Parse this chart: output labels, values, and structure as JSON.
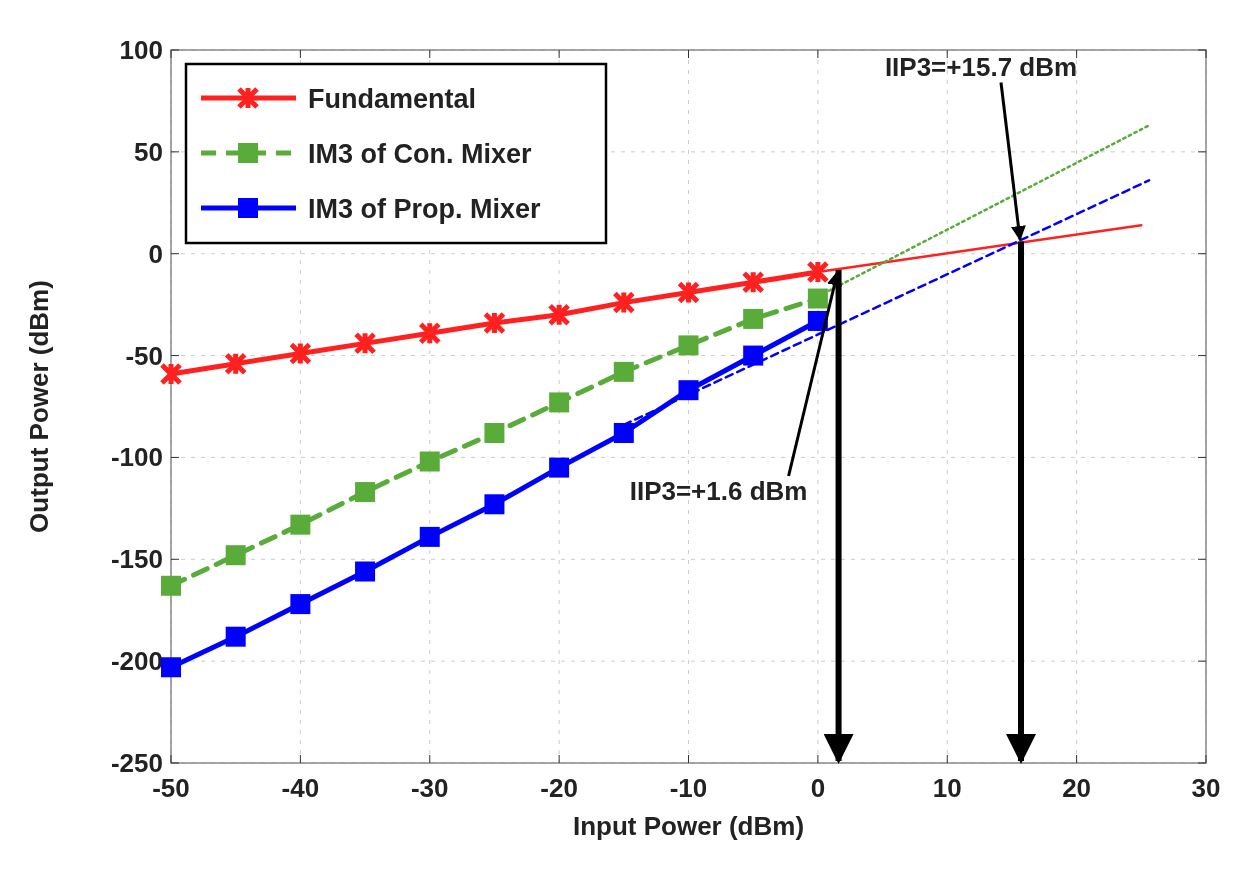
{
  "chart_data": {
    "type": "line",
    "xlabel": "Input Power (dBm)",
    "ylabel": "Output Power (dBm)",
    "xlim": [
      -50,
      30
    ],
    "xticks": [
      -50,
      -40,
      -30,
      -20,
      -10,
      0,
      10,
      20,
      30
    ],
    "ylim": [
      -250,
      100
    ],
    "yticks": [
      -250,
      -200,
      -150,
      -100,
      -50,
      0,
      50,
      100
    ],
    "grid": true,
    "legend": "top left",
    "marker": "square",
    "line_style": "solid",
    "x": [
      -50,
      -45,
      -40,
      -35,
      -30,
      -25,
      -20,
      -15,
      -10,
      -5,
      0
    ],
    "series": [
      {
        "name": "Fundamental",
        "color": "#ff2020",
        "marker": "cross",
        "values": [
          -59,
          -54,
          -49,
          -44,
          -39,
          -34,
          -30,
          -24,
          -19,
          -14,
          -9
        ]
      },
      {
        "name": "IM3 of Con. Mixer",
        "color": "#5aac3a",
        "line_style": "dashed",
        "values": [
          -163,
          -148,
          -133,
          -117,
          -102,
          -88,
          -73,
          -58,
          -45,
          -32,
          -22
        ]
      },
      {
        "name": "IM3 of Prop. Mixer",
        "color": "#0000ff",
        "values": [
          -203,
          -188,
          -172,
          -156,
          -139,
          -123,
          -105,
          -88,
          -67,
          -50,
          -33
        ]
      },
      {
        "color": "#ff2020",
        "marker": "none",
        "x": [
          0,
          25
        ],
        "values": [
          -9,
          14
        ]
      },
      {
        "color": "#5aac3a",
        "marker": "none",
        "line_style": "dotted",
        "x": [
          0,
          25.6
        ],
        "values": [
          -21,
          63
        ]
      },
      {
        "color": "#0000ff",
        "marker": "none",
        "line_style": "dashed",
        "x": [
          -15,
          25.6
        ],
        "values": [
          -84,
          36
        ]
      }
    ],
    "annotations": [
      {
        "text": "IIP3=+1.6 dBm",
        "x": 1.6,
        "y": -8
      },
      {
        "text": "IIP3=+15.7 dBm",
        "x": 15.7,
        "y": 6
      }
    ]
  }
}
